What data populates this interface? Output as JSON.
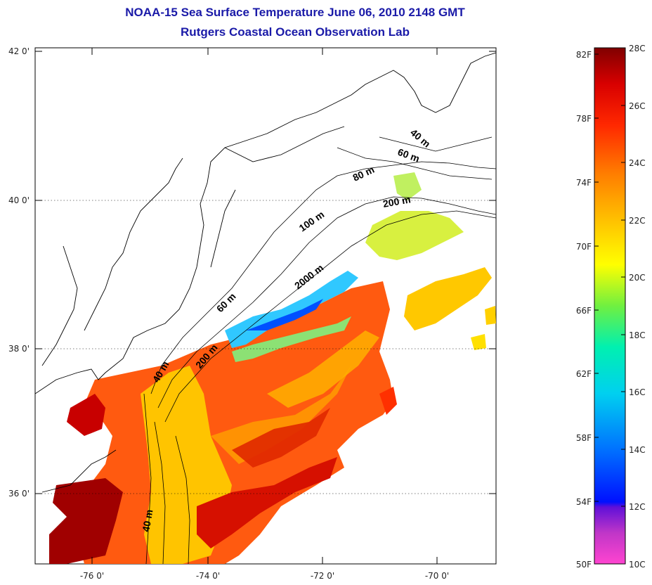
{
  "title": {
    "line1": "NOAA-15 Sea Surface Temperature June 06, 2010 2148 GMT",
    "line2": "Rutgers Coastal Ocean Observation Lab",
    "color": "#1a1aa8"
  },
  "map": {
    "lon_ticks": [
      "-76 0'",
      "-74 0'",
      "-72 0'",
      "-70 0'"
    ],
    "lat_ticks": [
      "42 0'",
      "40 0'",
      "38 0'",
      "36 0'"
    ],
    "contour_labels": [
      "40 m",
      "60 m",
      "80 m",
      "200 m",
      "100 m",
      "2000 m",
      "60 m",
      "200 m",
      "40 m",
      "40 m"
    ]
  },
  "colorbar": {
    "fahrenheit_labels": [
      "82F",
      "78F",
      "74F",
      "70F",
      "66F",
      "62F",
      "58F",
      "54F",
      "50F"
    ],
    "celsius_labels": [
      "28C",
      "26C",
      "24C",
      "22C",
      "20C",
      "18C",
      "16C",
      "14C",
      "12C",
      "10C"
    ],
    "colors": [
      "#ff44d0",
      "#a830c8",
      "#5a10d8",
      "#0010ff",
      "#0070ff",
      "#00c8f0",
      "#00f0c0",
      "#40f060",
      "#c8f000",
      "#ffff00",
      "#ffc000",
      "#ff8000",
      "#ff3000",
      "#e00000",
      "#8a0000"
    ]
  }
}
